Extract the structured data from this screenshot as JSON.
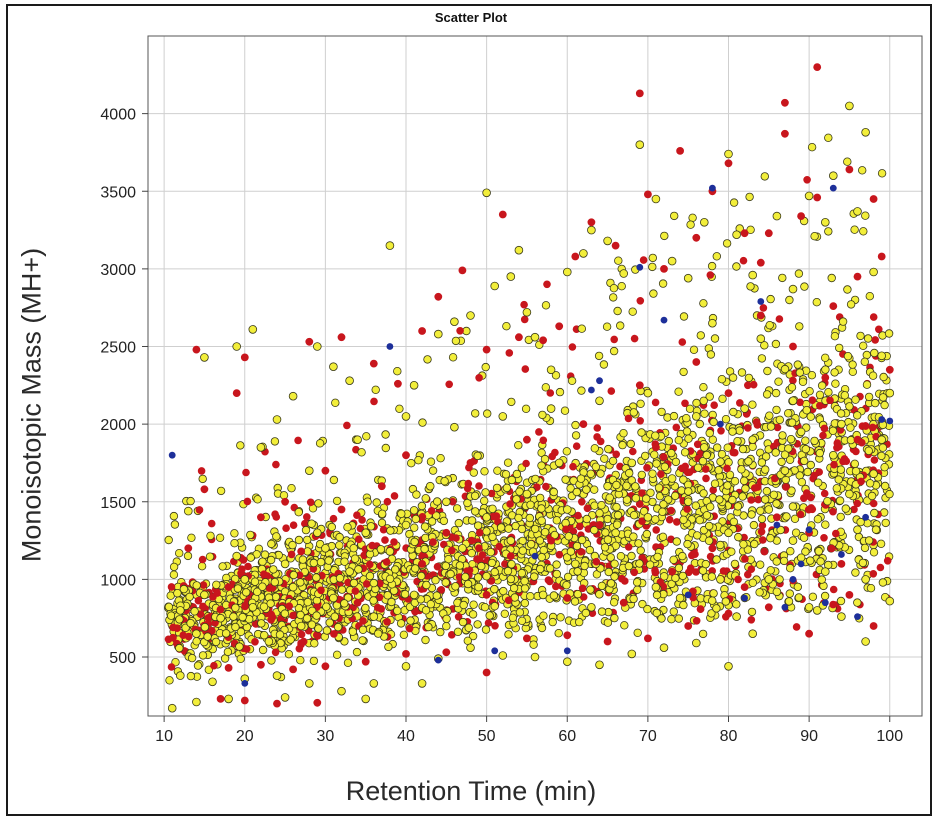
{
  "chart_data": {
    "type": "scatter",
    "title": "Scatter Plot",
    "xlabel": "Retention Time (min)",
    "ylabel": "Monoisotopic Mass (MH+)",
    "xlim": [
      8,
      104
    ],
    "ylim": [
      120,
      4500
    ],
    "x_ticks": [
      "10",
      "20",
      "30",
      "40",
      "50",
      "60",
      "70",
      "80",
      "90",
      "100"
    ],
    "y_ticks": [
      "500",
      "1000",
      "1500",
      "2000",
      "2500",
      "3000",
      "3500",
      "4000"
    ],
    "grid": true,
    "colors": {
      "yellow": "#f2ee3a",
      "red": "#c8161d",
      "blue": "#1d2f9a",
      "grid": "#cfcfcf"
    },
    "series": [
      {
        "color": "yellow",
        "points": [
          [
            11,
            170
          ],
          [
            14,
            210
          ],
          [
            18,
            230
          ],
          [
            25,
            240
          ],
          [
            35,
            230
          ],
          [
            13,
            1440
          ],
          [
            15,
            2430
          ],
          [
            19,
            2500
          ],
          [
            21,
            2610
          ],
          [
            24,
            2030
          ],
          [
            26,
            2180
          ],
          [
            29,
            2500
          ],
          [
            31,
            2370
          ],
          [
            33,
            2280
          ],
          [
            38,
            3150
          ],
          [
            41,
            2250
          ],
          [
            42,
            330
          ],
          [
            44,
            2580
          ],
          [
            46,
            2660
          ],
          [
            48,
            2700
          ],
          [
            50,
            3490
          ],
          [
            51,
            2890
          ],
          [
            53,
            2950
          ],
          [
            54,
            3120
          ],
          [
            55,
            2720
          ],
          [
            56,
            2560
          ],
          [
            58,
            2350
          ],
          [
            60,
            2980
          ],
          [
            62,
            3100
          ],
          [
            63,
            3250
          ],
          [
            65,
            3180
          ],
          [
            67,
            2970
          ],
          [
            69,
            3800
          ],
          [
            71,
            3450
          ],
          [
            73,
            3050
          ],
          [
            75,
            2940
          ],
          [
            77,
            3300
          ],
          [
            78,
            2650
          ],
          [
            80,
            3740
          ],
          [
            81,
            3220
          ],
          [
            83,
            2960
          ],
          [
            84,
            2550
          ],
          [
            86,
            3340
          ],
          [
            88,
            2870
          ],
          [
            90,
            3470
          ],
          [
            92,
            3300
          ],
          [
            93,
            3600
          ],
          [
            95,
            4050
          ],
          [
            96,
            3370
          ],
          [
            97,
            3880
          ],
          [
            98,
            2980
          ],
          [
            99,
            2440
          ],
          [
            100,
            2200
          ],
          [
            100,
            860
          ],
          [
            97,
            600
          ],
          [
            94,
            760
          ],
          [
            90,
            820
          ],
          [
            86,
            920
          ],
          [
            83,
            650
          ],
          [
            80,
            440
          ],
          [
            76,
            590
          ],
          [
            72,
            560
          ],
          [
            68,
            520
          ],
          [
            64,
            450
          ],
          [
            60,
            470
          ],
          [
            56,
            500
          ],
          [
            52,
            510
          ],
          [
            48,
            560
          ],
          [
            44,
            490
          ],
          [
            40,
            440
          ],
          [
            36,
            330
          ],
          [
            32,
            280
          ],
          [
            28,
            330
          ],
          [
            24,
            380
          ],
          [
            20,
            360
          ],
          [
            16,
            340
          ],
          [
            12,
            380
          ],
          [
            22,
            1850
          ],
          [
            28,
            1700
          ],
          [
            34,
            1900
          ],
          [
            40,
            2050
          ],
          [
            46,
            1980
          ],
          [
            52,
            2050
          ],
          [
            58,
            2100
          ],
          [
            64,
            2150
          ],
          [
            70,
            2200
          ],
          [
            76,
            2050
          ],
          [
            82,
            2100
          ],
          [
            88,
            2150
          ],
          [
            94,
            2000
          ],
          [
            98,
            1680
          ],
          [
            96,
            1320
          ],
          [
            92,
            1050
          ],
          [
            88,
            1250
          ],
          [
            85,
            1450
          ],
          [
            80,
            1300
          ],
          [
            75,
            1500
          ],
          [
            70,
            1400
          ],
          [
            65,
            1600
          ],
          [
            60,
            1450
          ],
          [
            55,
            1550
          ],
          [
            50,
            1400
          ],
          [
            45,
            1500
          ],
          [
            40,
            1350
          ],
          [
            35,
            1300
          ],
          [
            30,
            1200
          ],
          [
            25,
            1100
          ],
          [
            20,
            1000
          ],
          [
            15,
            900
          ],
          [
            12,
            800
          ],
          [
            14,
            650
          ],
          [
            17,
            750
          ],
          [
            19,
            1150
          ],
          [
            21,
            820
          ],
          [
            23,
            600
          ],
          [
            26,
            950
          ],
          [
            27,
            700
          ],
          [
            29,
            1300
          ],
          [
            31,
            880
          ],
          [
            33,
            1050
          ],
          [
            36,
            760
          ],
          [
            38,
            1180
          ],
          [
            41,
            900
          ],
          [
            43,
            1600
          ],
          [
            47,
            1200
          ],
          [
            49,
            950
          ],
          [
            53,
            1250
          ],
          [
            57,
            900
          ],
          [
            59,
            1750
          ],
          [
            61,
            1100
          ],
          [
            63,
            820
          ],
          [
            66,
            1300
          ],
          [
            68,
            1750
          ],
          [
            71,
            950
          ],
          [
            73,
            1650
          ],
          [
            74,
            880
          ],
          [
            77,
            1850
          ],
          [
            79,
            1000
          ],
          [
            81,
            760
          ],
          [
            83,
            1900
          ],
          [
            85,
            1000
          ],
          [
            87,
            1700
          ],
          [
            89,
            1950
          ],
          [
            91,
            800
          ],
          [
            93,
            1800
          ],
          [
            95,
            1550
          ],
          [
            97,
            1000
          ],
          [
            99,
            1900
          ]
        ]
      },
      {
        "color": "red",
        "points": [
          [
            14,
            2480
          ],
          [
            19,
            2200
          ],
          [
            20,
            2430
          ],
          [
            17,
            230
          ],
          [
            20,
            220
          ],
          [
            24,
            200
          ],
          [
            28,
            2530
          ],
          [
            29,
            205
          ],
          [
            32,
            2560
          ],
          [
            36,
            2390
          ],
          [
            39,
            2260
          ],
          [
            42,
            2600
          ],
          [
            44,
            2820
          ],
          [
            47,
            2990
          ],
          [
            50,
            2480
          ],
          [
            52,
            3350
          ],
          [
            54,
            2560
          ],
          [
            57,
            2540
          ],
          [
            59,
            2630
          ],
          [
            61,
            3080
          ],
          [
            63,
            3300
          ],
          [
            66,
            3150
          ],
          [
            69,
            4130
          ],
          [
            70,
            3480
          ],
          [
            72,
            3000
          ],
          [
            74,
            3760
          ],
          [
            76,
            3200
          ],
          [
            78,
            3500
          ],
          [
            80,
            3680
          ],
          [
            82,
            3230
          ],
          [
            84,
            3040
          ],
          [
            85,
            3230
          ],
          [
            87,
            3870
          ],
          [
            87,
            4070
          ],
          [
            89,
            3340
          ],
          [
            91,
            3460
          ],
          [
            91,
            4300
          ],
          [
            93,
            2760
          ],
          [
            95,
            3640
          ],
          [
            96,
            2950
          ],
          [
            98,
            3450
          ],
          [
            99,
            3080
          ],
          [
            100,
            2350
          ],
          [
            13,
            1200
          ],
          [
            15,
            1580
          ],
          [
            18,
            950
          ],
          [
            22,
            1400
          ],
          [
            25,
            1500
          ],
          [
            27,
            1180
          ],
          [
            30,
            1700
          ],
          [
            32,
            1450
          ],
          [
            34,
            850
          ],
          [
            37,
            1600
          ],
          [
            40,
            1800
          ],
          [
            42,
            1100
          ],
          [
            45,
            1300
          ],
          [
            48,
            1750
          ],
          [
            50,
            900
          ],
          [
            53,
            1150
          ],
          [
            55,
            1900
          ],
          [
            58,
            1250
          ],
          [
            60,
            880
          ],
          [
            62,
            2000
          ],
          [
            64,
            1350
          ],
          [
            67,
            850
          ],
          [
            69,
            2250
          ],
          [
            71,
            1850
          ],
          [
            73,
            1050
          ],
          [
            76,
            2400
          ],
          [
            78,
            1200
          ],
          [
            80,
            2200
          ],
          [
            82,
            950
          ],
          [
            84,
            2700
          ],
          [
            86,
            1400
          ],
          [
            88,
            2500
          ],
          [
            90,
            1300
          ],
          [
            92,
            2300
          ],
          [
            94,
            1100
          ],
          [
            96,
            1900
          ],
          [
            98,
            700
          ],
          [
            60,
            640
          ],
          [
            55,
            620
          ],
          [
            50,
            400
          ],
          [
            45,
            530
          ],
          [
            40,
            520
          ],
          [
            35,
            470
          ],
          [
            30,
            440
          ],
          [
            26,
            420
          ],
          [
            22,
            450
          ],
          [
            18,
            430
          ],
          [
            65,
            600
          ],
          [
            70,
            620
          ],
          [
            75,
            700
          ],
          [
            80,
            780
          ],
          [
            85,
            820
          ],
          [
            90,
            650
          ],
          [
            95,
            900
          ]
        ]
      },
      {
        "color": "blue",
        "points": [
          [
            11,
            1800
          ],
          [
            20,
            330
          ],
          [
            38,
            2500
          ],
          [
            51,
            540
          ],
          [
            56,
            1150
          ],
          [
            63,
            2220
          ],
          [
            64,
            2280
          ],
          [
            69,
            3010
          ],
          [
            72,
            2670
          ],
          [
            78,
            3520
          ],
          [
            79,
            2000
          ],
          [
            84,
            2790
          ],
          [
            86,
            1350
          ],
          [
            87,
            820
          ],
          [
            88,
            1000
          ],
          [
            89,
            1100
          ],
          [
            90,
            1320
          ],
          [
            92,
            850
          ],
          [
            93,
            3520
          ],
          [
            94,
            1160
          ],
          [
            96,
            760
          ],
          [
            99,
            2030
          ],
          [
            100,
            2020
          ],
          [
            44,
            480
          ],
          [
            60,
            540
          ],
          [
            75,
            900
          ],
          [
            82,
            880
          ],
          [
            97,
            1400
          ]
        ]
      }
    ]
  }
}
